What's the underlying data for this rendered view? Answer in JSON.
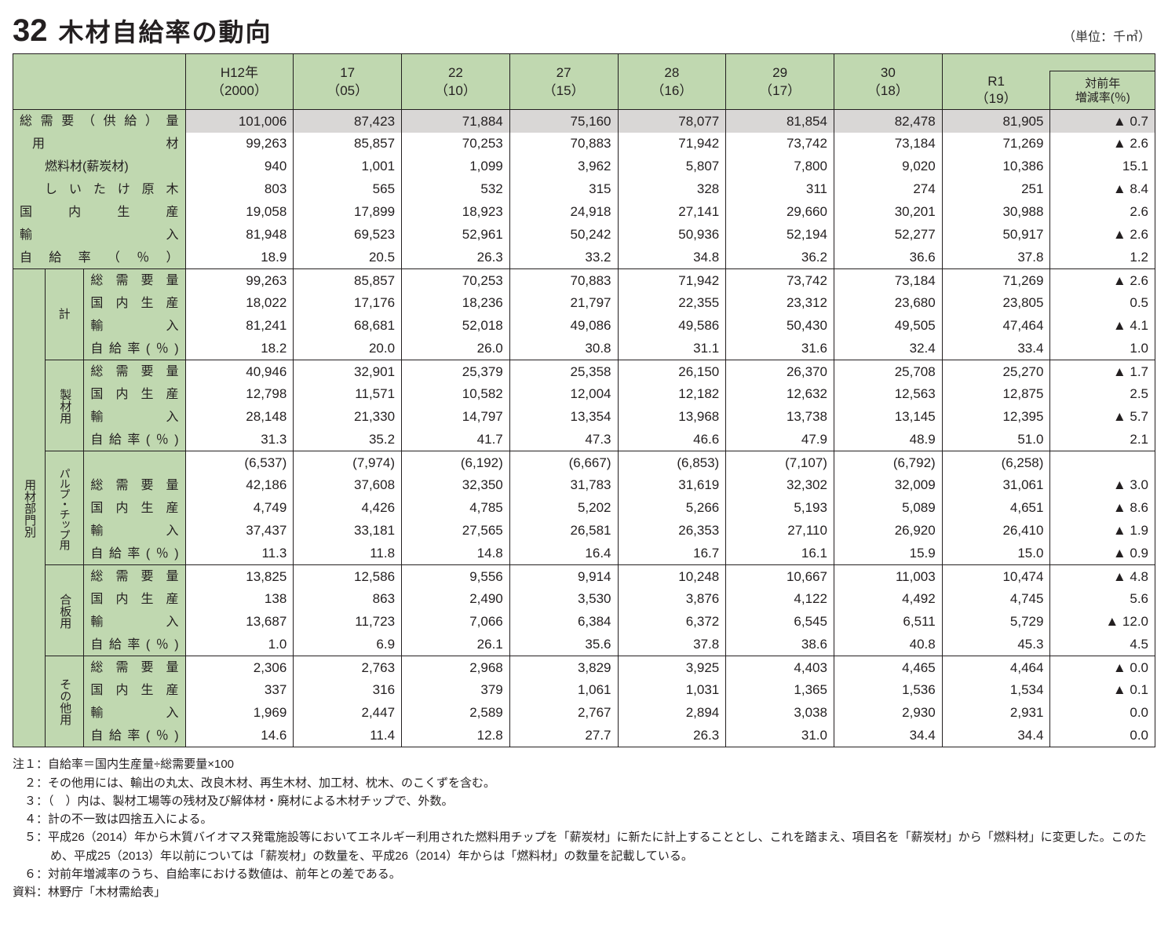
{
  "header": {
    "number": "32",
    "title": "木材自給率の動向",
    "unit": "（単位：千㎥）"
  },
  "years": {
    "h12a": "H12年",
    "h12b": "（2000）",
    "y17a": "17",
    "y17b": "（05）",
    "y22a": "22",
    "y22b": "（10）",
    "y27a": "27",
    "y27b": "（15）",
    "y28a": "28",
    "y28b": "（16）",
    "y29a": "29",
    "y29b": "（17）",
    "y30a": "30",
    "y30b": "（18）",
    "r1a": "R1",
    "r1b": "（19）",
    "rate": "対前年\n増減率(％)"
  },
  "rowheads": {
    "total_demand": "総需要（供給）量",
    "yozai": "用材",
    "nenryo": "燃料材(薪炭材)",
    "shiitake": "しいたけ原木",
    "kokunai": "国内生産",
    "yunyu": "輸入",
    "jikyuu": "自給率（％）",
    "kei": "計",
    "seizai": "製材用",
    "pulp": "パルプ・チップ用",
    "gouhan": "合板用",
    "sonota": "その他用",
    "yozai_bumon": "用材部門別",
    "sub_demand": "総需要量",
    "sub_kokunai": "国内生産",
    "sub_yunyu": "輸入",
    "sub_jikyuu": "自給率(％)"
  },
  "rows": {
    "total": [
      "101,006",
      "87,423",
      "71,884",
      "75,160",
      "78,077",
      "81,854",
      "82,478",
      "81,905",
      "▲ 0.7"
    ],
    "yozai": [
      "99,263",
      "85,857",
      "70,253",
      "70,883",
      "71,942",
      "73,742",
      "73,184",
      "71,269",
      "▲ 2.6"
    ],
    "nenryo": [
      "940",
      "1,001",
      "1,099",
      "3,962",
      "5,807",
      "7,800",
      "9,020",
      "10,386",
      "15.1"
    ],
    "shiitake": [
      "803",
      "565",
      "532",
      "315",
      "328",
      "311",
      "274",
      "251",
      "▲ 8.4"
    ],
    "kokunai": [
      "19,058",
      "17,899",
      "18,923",
      "24,918",
      "27,141",
      "29,660",
      "30,201",
      "30,988",
      "2.6"
    ],
    "yunyu": [
      "81,948",
      "69,523",
      "52,961",
      "50,242",
      "50,936",
      "52,194",
      "52,277",
      "50,917",
      "▲ 2.6"
    ],
    "jikyuu": [
      "18.9",
      "20.5",
      "26.3",
      "33.2",
      "34.8",
      "36.2",
      "36.6",
      "37.8",
      "1.2"
    ],
    "kei_d": [
      "99,263",
      "85,857",
      "70,253",
      "70,883",
      "71,942",
      "73,742",
      "73,184",
      "71,269",
      "▲ 2.6"
    ],
    "kei_k": [
      "18,022",
      "17,176",
      "18,236",
      "21,797",
      "22,355",
      "23,312",
      "23,680",
      "23,805",
      "0.5"
    ],
    "kei_y": [
      "81,241",
      "68,681",
      "52,018",
      "49,086",
      "49,586",
      "50,430",
      "49,505",
      "47,464",
      "▲ 4.1"
    ],
    "kei_j": [
      "18.2",
      "20.0",
      "26.0",
      "30.8",
      "31.1",
      "31.6",
      "32.4",
      "33.4",
      "1.0"
    ],
    "sei_d": [
      "40,946",
      "32,901",
      "25,379",
      "25,358",
      "26,150",
      "26,370",
      "25,708",
      "25,270",
      "▲ 1.7"
    ],
    "sei_k": [
      "12,798",
      "11,571",
      "10,582",
      "12,004",
      "12,182",
      "12,632",
      "12,563",
      "12,875",
      "2.5"
    ],
    "sei_y": [
      "28,148",
      "21,330",
      "14,797",
      "13,354",
      "13,968",
      "13,738",
      "13,145",
      "12,395",
      "▲ 5.7"
    ],
    "sei_j": [
      "31.3",
      "35.2",
      "41.7",
      "47.3",
      "46.6",
      "47.9",
      "48.9",
      "51.0",
      "2.1"
    ],
    "pulp_p": [
      "(6,537)",
      "(7,974)",
      "(6,192)",
      "(6,667)",
      "(6,853)",
      "(7,107)",
      "(6,792)",
      "(6,258)",
      ""
    ],
    "pulp_d": [
      "42,186",
      "37,608",
      "32,350",
      "31,783",
      "31,619",
      "32,302",
      "32,009",
      "31,061",
      "▲ 3.0"
    ],
    "pulp_k": [
      "4,749",
      "4,426",
      "4,785",
      "5,202",
      "5,266",
      "5,193",
      "5,089",
      "4,651",
      "▲ 8.6"
    ],
    "pulp_y": [
      "37,437",
      "33,181",
      "27,565",
      "26,581",
      "26,353",
      "27,110",
      "26,920",
      "26,410",
      "▲ 1.9"
    ],
    "pulp_j": [
      "11.3",
      "11.8",
      "14.8",
      "16.4",
      "16.7",
      "16.1",
      "15.9",
      "15.0",
      "▲ 0.9"
    ],
    "gou_d": [
      "13,825",
      "12,586",
      "9,556",
      "9,914",
      "10,248",
      "10,667",
      "11,003",
      "10,474",
      "▲ 4.8"
    ],
    "gou_k": [
      "138",
      "863",
      "2,490",
      "3,530",
      "3,876",
      "4,122",
      "4,492",
      "4,745",
      "5.6"
    ],
    "gou_y": [
      "13,687",
      "11,723",
      "7,066",
      "6,384",
      "6,372",
      "6,545",
      "6,511",
      "5,729",
      "▲ 12.0"
    ],
    "gou_j": [
      "1.0",
      "6.9",
      "26.1",
      "35.6",
      "37.8",
      "38.6",
      "40.8",
      "45.3",
      "4.5"
    ],
    "son_d": [
      "2,306",
      "2,763",
      "2,968",
      "3,829",
      "3,925",
      "4,403",
      "4,465",
      "4,464",
      "▲ 0.0"
    ],
    "son_k": [
      "337",
      "316",
      "379",
      "1,061",
      "1,031",
      "1,365",
      "1,536",
      "1,534",
      "▲ 0.1"
    ],
    "son_y": [
      "1,969",
      "2,447",
      "2,589",
      "2,767",
      "2,894",
      "3,038",
      "2,930",
      "2,931",
      "0.0"
    ],
    "son_j": [
      "14.6",
      "11.4",
      "12.8",
      "27.7",
      "26.3",
      "31.0",
      "34.4",
      "34.4",
      "0.0"
    ]
  },
  "notes": {
    "n1": "注１：自給率＝国内生産量÷総需要量×100",
    "n2": "　２：その他用には、輸出の丸太、改良木材、再生木材、加工材、枕木、のこくずを含む。",
    "n3": "　３：（　）内は、製材工場等の残材及び解体材・廃材による木材チップで、外数。",
    "n4": "　４：計の不一致は四捨五入による。",
    "n5": "　５：平成26（2014）年から木質バイオマス発電施設等においてエネルギー利用された燃料用チップを「薪炭材」に新たに計上することとし、これを踏まえ、項目名を「薪炭材」から「燃料材」に変更した。このため、平成25（2013）年以前については「薪炭材」の数量を、平成26（2014）年からは「燃料材」の数量を記載している。",
    "n6": "　６：対前年増減率のうち、自給率における数値は、前年との差である。",
    "src": "資料：林野庁「木材需給表」"
  },
  "colors": {
    "header_bg": "#c0d8b0",
    "shade_bg": "#d9d7d6",
    "border": "#231f20"
  }
}
